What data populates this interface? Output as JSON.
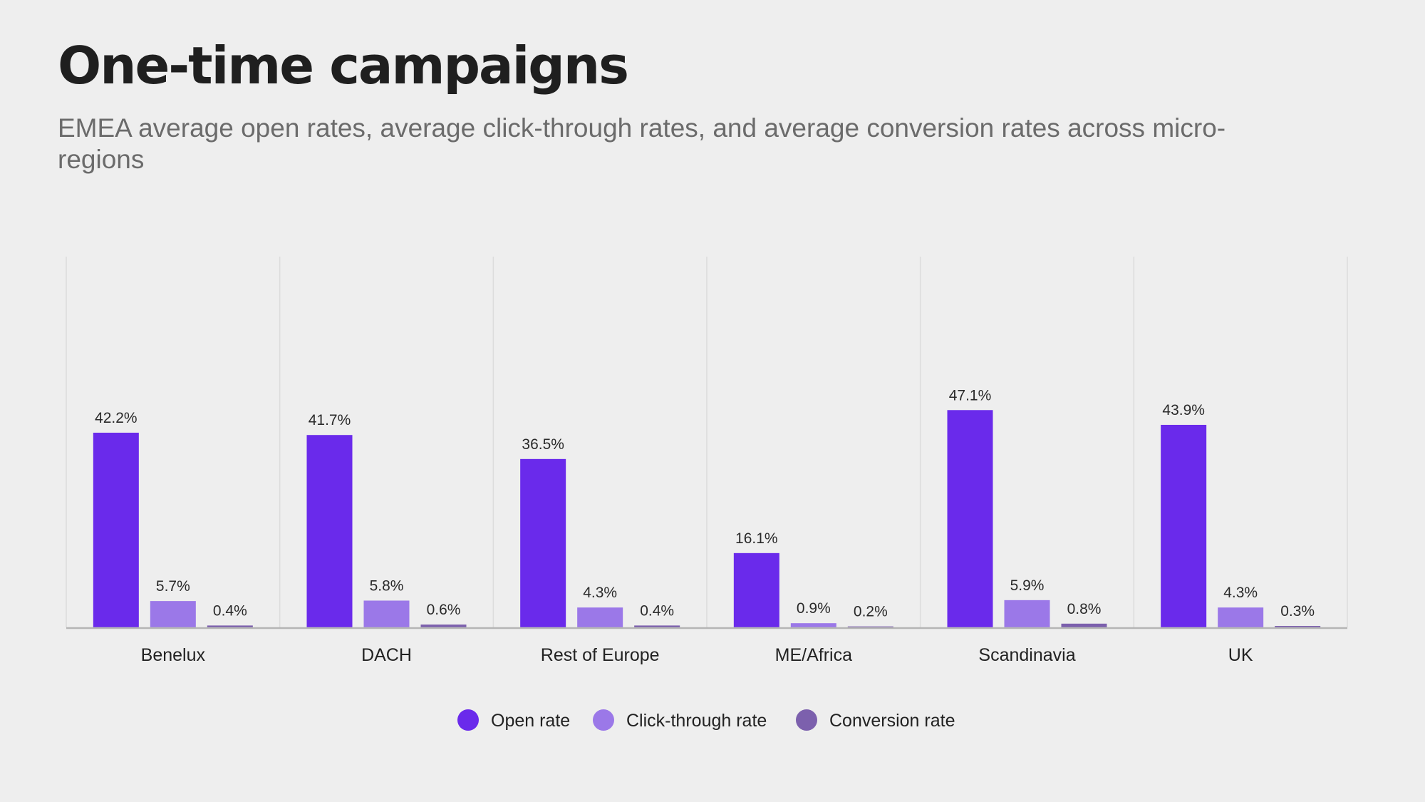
{
  "header": {
    "title": "One-time campaigns",
    "subtitle": "EMEA average open rates, average click-through rates, and average conversion rates across micro-regions"
  },
  "colors": {
    "open_rate": "#6a2aeb",
    "click_through_rate": "#9b78e8",
    "conversion_rate": "#7c60ad",
    "gridline": "#dcdcdc",
    "axis": "#b5b5b5"
  },
  "chart_data": {
    "type": "bar",
    "categories": [
      "Benelux",
      "DACH",
      "Rest of Europe",
      "ME/Africa",
      "Scandinavia",
      "UK"
    ],
    "series": [
      {
        "name": "Open rate",
        "values": [
          42.2,
          41.7,
          36.5,
          16.1,
          47.1,
          43.9
        ],
        "labels": [
          "42.2%",
          "41.7%",
          "36.5%",
          "16.1%",
          "47.1%",
          "43.9%"
        ],
        "color": "#6a2aeb"
      },
      {
        "name": "Click-through rate",
        "values": [
          5.7,
          5.8,
          4.3,
          0.9,
          5.9,
          4.3
        ],
        "labels": [
          "5.7%",
          "5.8%",
          "4.3%",
          "0.9%",
          "5.9%",
          "4.3%"
        ],
        "color": "#9b78e8"
      },
      {
        "name": "Conversion rate",
        "values": [
          0.4,
          0.6,
          0.4,
          0.2,
          0.8,
          0.3
        ],
        "labels": [
          "0.4%",
          "0.6%",
          "0.4%",
          "0.2%",
          "0.8%",
          "0.3%"
        ],
        "color": "#7c60ad"
      }
    ],
    "ylim": [
      0,
      90
    ],
    "legend_position": "bottom-center",
    "grid": "vertical-category-separators"
  }
}
